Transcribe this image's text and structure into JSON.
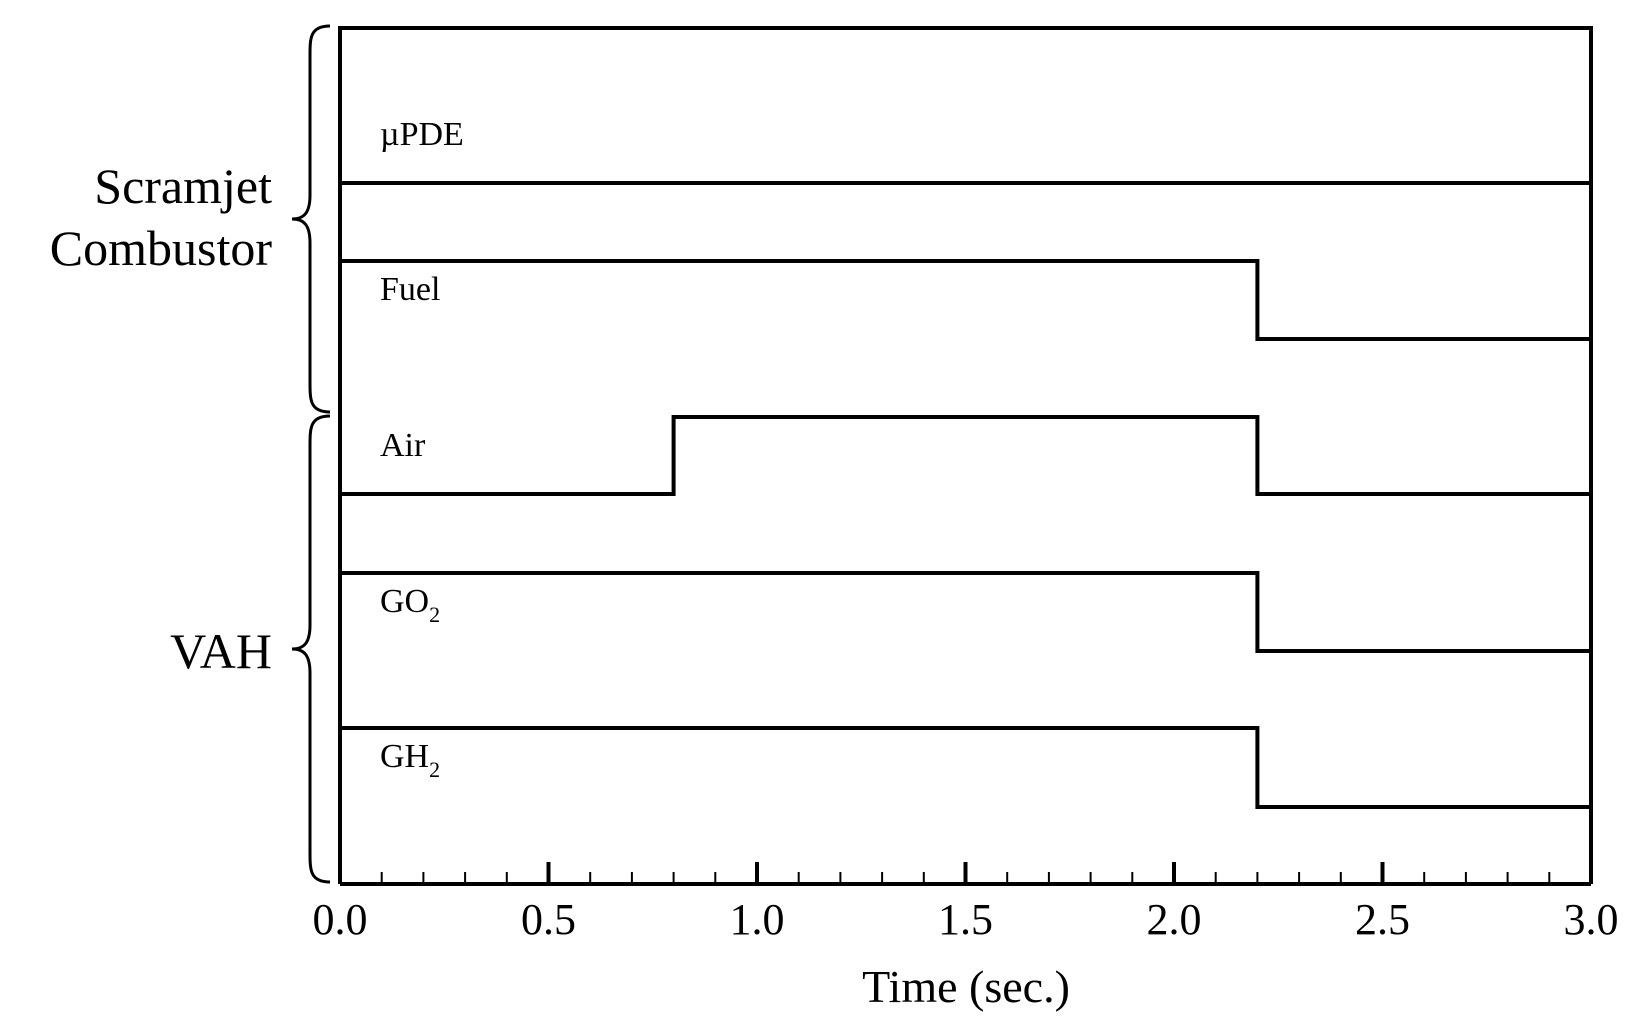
{
  "chart_data": {
    "type": "line",
    "step": "after",
    "xlabel": "Time (sec.)",
    "xlim": [
      0.0,
      3.0
    ],
    "x_ticks": [
      "0.0",
      "0.5",
      "1.0",
      "1.5",
      "2.0",
      "2.5",
      "3.0"
    ],
    "x_minor_tick_step": 0.1,
    "ylabel": "",
    "grid": false,
    "legend": "none",
    "line_color": "#000000",
    "groups": [
      {
        "label_lines": [
          "Scramjet",
          "Combustor"
        ],
        "series": [
          "µPDE",
          "Fuel"
        ]
      },
      {
        "label_lines": [
          "VAH"
        ],
        "series": [
          "Air",
          "GO2",
          "GH2"
        ]
      }
    ],
    "series": [
      {
        "name": "µPDE",
        "label_base": "µPDE",
        "label_sub": "",
        "states": [
          {
            "t": 0.0,
            "on": 1
          },
          {
            "t": 3.0,
            "on": 1
          }
        ]
      },
      {
        "name": "Fuel",
        "label_base": "Fuel",
        "label_sub": "",
        "states": [
          {
            "t": 0.0,
            "on": 1
          },
          {
            "t": 2.2,
            "on": 0
          },
          {
            "t": 3.0,
            "on": 0
          }
        ]
      },
      {
        "name": "Air",
        "label_base": "Air",
        "label_sub": "",
        "states": [
          {
            "t": 0.0,
            "on": 0
          },
          {
            "t": 0.8,
            "on": 1
          },
          {
            "t": 2.2,
            "on": 0
          },
          {
            "t": 3.0,
            "on": 0
          }
        ]
      },
      {
        "name": "GO2",
        "label_base": "GO",
        "label_sub": "2",
        "states": [
          {
            "t": 0.0,
            "on": 1
          },
          {
            "t": 2.2,
            "on": 0
          },
          {
            "t": 3.0,
            "on": 0
          }
        ]
      },
      {
        "name": "GH2",
        "label_base": "GH",
        "label_sub": "2",
        "states": [
          {
            "t": 0.0,
            "on": 1
          },
          {
            "t": 2.2,
            "on": 0
          },
          {
            "t": 3.0,
            "on": 0
          }
        ]
      }
    ]
  }
}
